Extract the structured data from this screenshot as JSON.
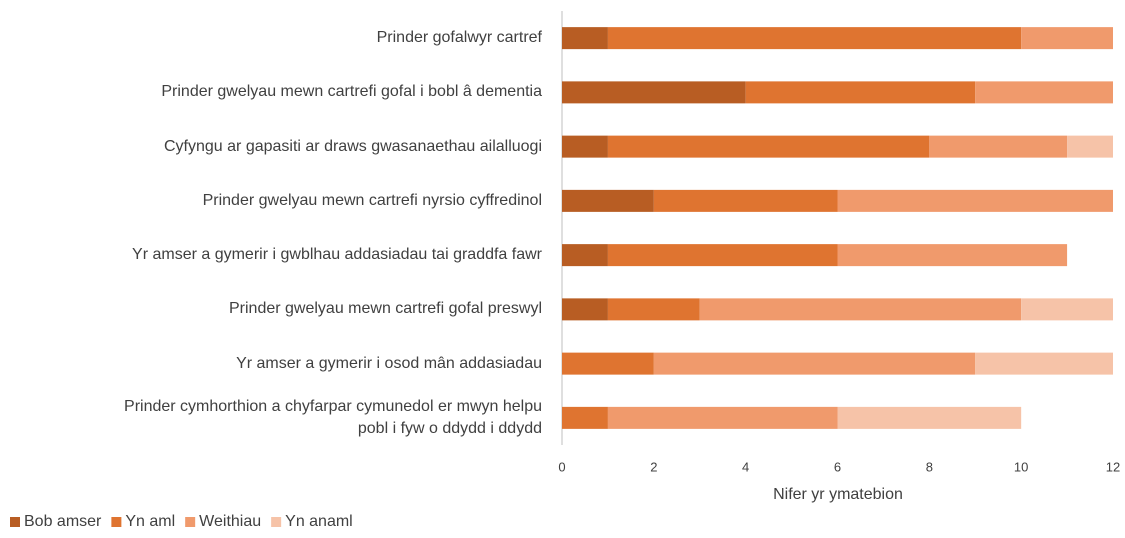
{
  "chart_data": {
    "type": "stacked_barh",
    "categories": [
      "Prinder gofalwyr cartref",
      "Prinder gwelyau mewn cartrefi gofal i bobl â dementia",
      "Cyfyngu ar gapasiti ar draws gwasanaethau ailalluogi",
      "Prinder gwelyau mewn cartrefi nyrsio cyffredinol",
      "Yr amser a gymerir i gwblhau addasiadau tai graddfa fawr",
      "Prinder gwelyau mewn cartrefi gofal preswyl",
      "Yr amser a gymerir i osod mân addasiadau",
      "Prinder cymhorthion a chyfarpar cymunedol er mwyn helpu\npobl i fyw o ddydd i ddydd"
    ],
    "series": [
      {
        "name": "Bob amser",
        "color": "#b85d23",
        "values": [
          1,
          4,
          1,
          2,
          1,
          1,
          0,
          0
        ]
      },
      {
        "name": "Yn aml",
        "color": "#df7430",
        "values": [
          9,
          5,
          7,
          4,
          5,
          2,
          2,
          1
        ]
      },
      {
        "name": "Weithiau",
        "color": "#f09a6c",
        "values": [
          2,
          3,
          3,
          6,
          5,
          7,
          7,
          5
        ]
      },
      {
        "name": "Yn anaml",
        "color": "#f6c3a8",
        "values": [
          0,
          0,
          1,
          0,
          0,
          2,
          3,
          4
        ]
      }
    ],
    "xlabel": "Nifer yr ymatebion",
    "xlim": [
      0,
      12
    ],
    "xticks": [
      0,
      2,
      4,
      6,
      8,
      10,
      12
    ],
    "legend": "bottom-left"
  }
}
